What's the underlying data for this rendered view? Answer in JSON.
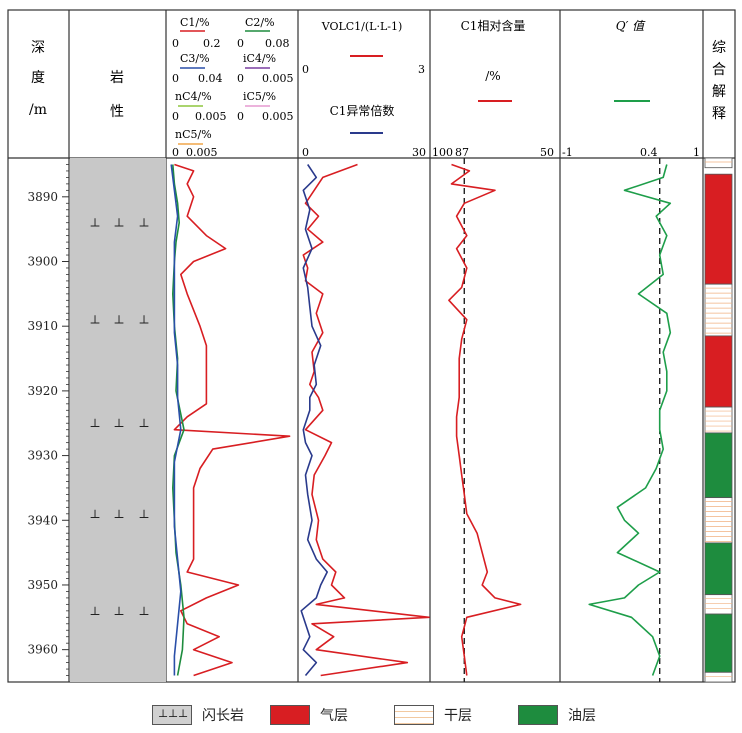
{
  "header": {
    "depth_label": [
      "深",
      "度",
      "/m"
    ],
    "lith_label": [
      "岩",
      "性"
    ],
    "track3": {
      "c1": {
        "name": "C1/%",
        "min": "0",
        "max": "0.2",
        "color": "#d81e22"
      },
      "c2": {
        "name": "C2/%",
        "min": "0",
        "max": "0.08",
        "color": "#1e8c3e"
      },
      "c3": {
        "name": "C3/%",
        "min": "0",
        "max": "0.04",
        "color": "#2a4fa8"
      },
      "ic4": {
        "name": "iC4/%",
        "min": "0",
        "max": "0.005",
        "color": "#7a3fa0"
      },
      "nc4": {
        "name": "nC4/%",
        "min": "0",
        "max": "0.005",
        "color": "#8dc63f"
      },
      "ic5": {
        "name": "iC5/%",
        "min": "0",
        "max": "0.005",
        "color": "#e59ad0"
      },
      "nc5": {
        "name": "nC5/%",
        "min": "0",
        "max": "0.005",
        "color": "#f0a64a"
      },
      "bottom_scale": "0  0.005"
    },
    "track4": {
      "vol_label": "VOLC1/(L·L-1)",
      "vol_min": "0",
      "vol_max": "3",
      "ratio_label": "C1异常倍数",
      "ratio_min": "0",
      "ratio_max": "30"
    },
    "track5": {
      "label": "C1相对含量",
      "unit": "/%",
      "scale_left": "100",
      "scale_mid": "87",
      "scale_right": "50"
    },
    "track6": {
      "label": "Q′ 值",
      "scale_left": "-1",
      "scale_mid": "0.4",
      "scale_right": "1"
    },
    "track7": {
      "label": [
        "综",
        "合",
        "解",
        "释"
      ]
    }
  },
  "legend": [
    {
      "label": "闪长岩",
      "type": "lith"
    },
    {
      "label": "气层",
      "type": "gas"
    },
    {
      "label": "干层",
      "type": "dry"
    },
    {
      "label": "油层",
      "type": "oil"
    }
  ],
  "chart_data": {
    "type": "line",
    "depth_axis": {
      "label": "深度/m",
      "min": 3884,
      "max": 3965,
      "ticks": [
        3890,
        3900,
        3910,
        3920,
        3930,
        3940,
        3950,
        3960
      ]
    },
    "lithology": {
      "name": "闪长岩",
      "symbol_depths": [
        3894,
        3909,
        3925,
        3939,
        3954
      ]
    },
    "tracks": [
      {
        "name": "gas_components",
        "series": [
          {
            "name": "C1",
            "color": "#d81e22",
            "max": 0.2,
            "depth": [
              3885,
              3886,
              3888,
              3890,
              3893,
              3896,
              3898,
              3900,
              3902,
              3905,
              3910,
              3913,
              3915,
              3917,
              3919,
              3922,
              3924,
              3926,
              3927,
              3929,
              3932,
              3935,
              3940,
              3943,
              3946,
              3948,
              3950,
              3952,
              3954,
              3956,
              3958,
              3960,
              3962,
              3964
            ],
            "values": [
              0.01,
              0.04,
              0.03,
              0.04,
              0.03,
              0.06,
              0.09,
              0.04,
              0.02,
              0.03,
              0.05,
              0.06,
              0.06,
              0.06,
              0.06,
              0.06,
              0.03,
              0.01,
              0.19,
              0.07,
              0.05,
              0.04,
              0.04,
              0.04,
              0.04,
              0.03,
              0.11,
              0.06,
              0.02,
              0.03,
              0.08,
              0.04,
              0.1,
              0.04
            ]
          },
          {
            "name": "C2",
            "color": "#1e8c3e",
            "max": 0.08,
            "depth": [
              3885,
              3888,
              3891,
              3894,
              3897,
              3900,
              3905,
              3910,
              3915,
              3920,
              3926,
              3930,
              3935,
              3940,
              3945,
              3950,
              3955,
              3960,
              3964
            ],
            "values": [
              0.003,
              0.004,
              0.006,
              0.007,
              0.005,
              0.004,
              0.003,
              0.004,
              0.006,
              0.005,
              0.01,
              0.004,
              0.003,
              0.004,
              0.005,
              0.008,
              0.01,
              0.009,
              0.006
            ]
          },
          {
            "name": "C3",
            "color": "#2a4fa8",
            "max": 0.04,
            "depth": [
              3885,
              3889,
              3893,
              3897,
              3901,
              3906,
              3911,
              3916,
              3921,
              3926,
              3931,
              3936,
              3941,
              3946,
              3951,
              3956,
              3961,
              3964
            ],
            "values": [
              0.001,
              0.002,
              0.003,
              0.002,
              0.002,
              0.002,
              0.002,
              0.003,
              0.003,
              0.004,
              0.002,
              0.002,
              0.002,
              0.003,
              0.004,
              0.003,
              0.002,
              0.002
            ]
          }
        ]
      },
      {
        "name": "vol_and_ratio",
        "series": [
          {
            "name": "VOLC1",
            "color": "#d81e22",
            "max": 3,
            "depth": [
              3885,
              3887,
              3889,
              3891,
              3893,
              3895,
              3897,
              3899,
              3901,
              3903,
              3905,
              3908,
              3911,
              3914,
              3917,
              3919,
              3921,
              3923,
              3926,
              3928,
              3930,
              3933,
              3936,
              3940,
              3943,
              3946,
              3948,
              3950,
              3952,
              3953,
              3955,
              3956,
              3958,
              3960,
              3962,
              3964
            ],
            "values": [
              1.35,
              0.55,
              0.35,
              0.15,
              0.45,
              0.2,
              0.55,
              0.1,
              0.2,
              0.15,
              0.55,
              0.4,
              0.55,
              0.3,
              0.35,
              0.25,
              0.45,
              0.55,
              0.15,
              0.75,
              0.6,
              0.35,
              0.3,
              0.45,
              0.4,
              0.55,
              0.85,
              0.75,
              1.05,
              0.4,
              3.0,
              0.3,
              0.8,
              0.4,
              2.5,
              0.5
            ]
          },
          {
            "name": "C1异常倍数",
            "color": "#2a3a8c",
            "max": 30,
            "depth": [
              3885,
              3887,
              3889,
              3892,
              3895,
              3898,
              3901,
              3904,
              3907,
              3910,
              3913,
              3916,
              3919,
              3921,
              3923,
              3926,
              3928,
              3930,
              3933,
              3936,
              3940,
              3943,
              3946,
              3948,
              3950,
              3952,
              3954,
              3956,
              3958,
              3960,
              3962,
              3964
            ],
            "values": [
              2.0,
              4.0,
              1.0,
              2.5,
              1.5,
              3.0,
              1.0,
              2.0,
              2.5,
              3.0,
              5.0,
              3.5,
              4.0,
              2.5,
              2.5,
              1.0,
              1.5,
              3.0,
              1.5,
              2.0,
              3.0,
              2.0,
              4.0,
              6.5,
              5.0,
              4.0,
              0.5,
              1.5,
              2.5,
              1.0,
              4.0,
              1.5
            ]
          }
        ]
      },
      {
        "name": "C1_relative_content",
        "series": [
          {
            "name": "C1相对含量",
            "color": "#d81e22",
            "depth": [
              3885,
              3886,
              3888,
              3889,
              3891,
              3893,
              3896,
              3898,
              3901,
              3904,
              3906,
              3909,
              3912,
              3915,
              3918,
              3921,
              3924,
              3927,
              3930,
              3933,
              3936,
              3939,
              3942,
              3945,
              3948,
              3950,
              3952,
              3953,
              3955,
              3958,
              3961,
              3964
            ],
            "values": [
              92,
              85,
              92,
              75,
              87,
              90,
              86,
              90,
              86,
              88,
              93,
              86,
              88,
              89,
              89,
              89,
              90,
              90,
              89,
              88,
              87,
              86,
              82,
              80,
              78,
              80,
              75,
              65,
              86,
              88,
              87,
              86
            ]
          }
        ],
        "reference_line": 87
      },
      {
        "name": "Q_value",
        "series": [
          {
            "name": "Q′",
            "color": "#1e9e4a",
            "depth": [
              3885,
              3887,
              3889,
              3891,
              3893,
              3896,
              3899,
              3902,
              3905,
              3908,
              3911,
              3914,
              3917,
              3920,
              3923,
              3926,
              3929,
              3932,
              3935,
              3938,
              3940,
              3942,
              3945,
              3948,
              3950,
              3952,
              3953,
              3955,
              3958,
              3961,
              3964
            ],
            "values": [
              0.5,
              0.45,
              -0.1,
              0.55,
              0.35,
              0.5,
              0.4,
              0.45,
              0.1,
              0.5,
              0.55,
              0.45,
              0.5,
              0.5,
              0.4,
              0.4,
              0.45,
              0.35,
              0.2,
              -0.2,
              -0.1,
              0.1,
              -0.2,
              0.4,
              0.1,
              -0.1,
              -0.6,
              0.0,
              0.3,
              0.4,
              0.3
            ]
          }
        ],
        "reference_line": 0.4
      }
    ],
    "interpretation": [
      {
        "top": 3884,
        "bottom": 3885.5,
        "type": "dry"
      },
      {
        "top": 3886.5,
        "bottom": 3903.5,
        "type": "gas"
      },
      {
        "top": 3903.5,
        "bottom": 3911.5,
        "type": "dry"
      },
      {
        "top": 3911.5,
        "bottom": 3922.5,
        "type": "gas"
      },
      {
        "top": 3922.5,
        "bottom": 3926.5,
        "type": "dry"
      },
      {
        "top": 3926.5,
        "bottom": 3936.5,
        "type": "oil"
      },
      {
        "top": 3936.5,
        "bottom": 3943.5,
        "type": "dry"
      },
      {
        "top": 3943.5,
        "bottom": 3951.5,
        "type": "oil"
      },
      {
        "top": 3951.5,
        "bottom": 3954.5,
        "type": "dry"
      },
      {
        "top": 3954.5,
        "bottom": 3963.5,
        "type": "oil"
      },
      {
        "top": 3963.5,
        "bottom": 3965,
        "type": "dry"
      }
    ],
    "interpretation_colors": {
      "gas": "#d81e22",
      "oil": "#1e8c3e",
      "dry": "#ffffff"
    }
  }
}
